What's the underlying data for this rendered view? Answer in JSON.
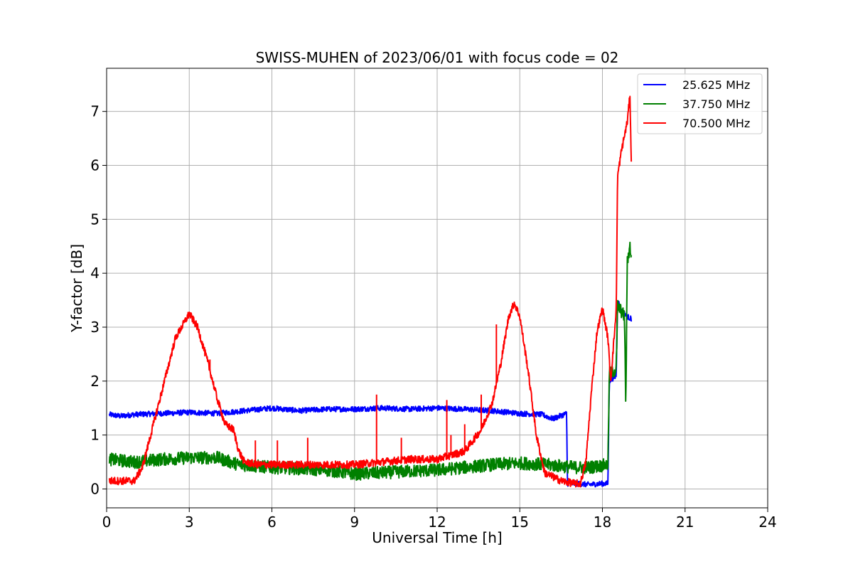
{
  "chart_data": {
    "type": "line",
    "title": "SWISS-MUHEN of 2023/06/01 with focus code = 02",
    "xlabel": "Universal Time [h]",
    "ylabel": "Y-factor [dB]",
    "xlim": [
      0,
      24
    ],
    "ylim": [
      -0.35,
      7.8
    ],
    "xticks": [
      0,
      3,
      6,
      9,
      12,
      15,
      18,
      21,
      24
    ],
    "yticks": [
      0,
      1,
      2,
      3,
      4,
      5,
      6,
      7
    ],
    "grid": true,
    "legend_position": "top-right",
    "series": [
      {
        "name": "25.625 MHz",
        "color": "#0000ff",
        "x": [
          0.1,
          0.5,
          1.0,
          2.0,
          3.0,
          4.0,
          5.0,
          6.0,
          7.0,
          8.0,
          9.0,
          10.0,
          11.0,
          12.0,
          13.0,
          14.0,
          15.0,
          15.8,
          16.2,
          16.7,
          16.73,
          17.0,
          17.5,
          18.0,
          18.2,
          18.25,
          18.5,
          18.55,
          18.7,
          18.9,
          19.05
        ],
        "y": [
          1.38,
          1.35,
          1.38,
          1.4,
          1.42,
          1.4,
          1.45,
          1.5,
          1.45,
          1.48,
          1.48,
          1.5,
          1.48,
          1.5,
          1.48,
          1.45,
          1.4,
          1.38,
          1.3,
          1.4,
          0.1,
          0.1,
          0.08,
          0.1,
          0.1,
          2.0,
          2.1,
          3.5,
          3.3,
          3.2,
          3.15
        ],
        "noise": 0.05
      },
      {
        "name": "37.750 MHz",
        "color": "#008000",
        "x": [
          0.1,
          1.0,
          2.0,
          3.0,
          4.0,
          4.8,
          6.0,
          7.0,
          8.0,
          9.0,
          10.0,
          11.0,
          12.0,
          13.0,
          14.0,
          15.0,
          16.0,
          17.0,
          17.5,
          18.2,
          18.25,
          18.5,
          18.55,
          18.8,
          18.85,
          18.9,
          19.0,
          19.05
        ],
        "y": [
          0.55,
          0.5,
          0.55,
          0.58,
          0.58,
          0.45,
          0.4,
          0.38,
          0.35,
          0.28,
          0.3,
          0.33,
          0.35,
          0.4,
          0.45,
          0.48,
          0.45,
          0.4,
          0.4,
          0.45,
          2.15,
          2.2,
          3.4,
          3.2,
          1.5,
          4.2,
          4.5,
          4.3
        ],
        "noise": 0.12
      },
      {
        "name": "70.500 MHz",
        "color": "#ff0000",
        "x": [
          0.1,
          0.5,
          1.0,
          1.3,
          1.6,
          2.0,
          2.5,
          3.0,
          3.3,
          3.7,
          4.0,
          4.3,
          4.6,
          4.8,
          5.0,
          5.5,
          6.0,
          7.0,
          8.0,
          9.0,
          10.0,
          11.0,
          12.0,
          13.0,
          13.3,
          13.6,
          14.0,
          14.3,
          14.6,
          14.8,
          15.0,
          15.3,
          15.6,
          15.9,
          16.5,
          17.0,
          17.2,
          17.4,
          17.6,
          17.8,
          18.0,
          18.2,
          18.3,
          18.5,
          18.55,
          18.7,
          18.9,
          19.0,
          19.05
        ],
        "y": [
          0.15,
          0.15,
          0.15,
          0.4,
          1.0,
          1.8,
          2.8,
          3.25,
          3.0,
          2.3,
          1.7,
          1.2,
          1.1,
          0.7,
          0.5,
          0.45,
          0.45,
          0.45,
          0.45,
          0.45,
          0.5,
          0.55,
          0.55,
          0.7,
          0.9,
          1.1,
          1.6,
          2.3,
          3.2,
          3.45,
          3.2,
          2.2,
          1.0,
          0.3,
          0.15,
          0.1,
          0.1,
          0.5,
          1.8,
          2.9,
          3.35,
          2.8,
          2.0,
          3.3,
          5.8,
          6.3,
          6.8,
          7.3,
          6.0
        ],
        "noise": 0.07,
        "spikes": [
          {
            "x": 1.75,
            "y": 1.3
          },
          {
            "x": 2.0,
            "y": 1.8
          },
          {
            "x": 2.2,
            "y": 2.2
          },
          {
            "x": 3.75,
            "y": 2.4
          },
          {
            "x": 5.4,
            "y": 0.9
          },
          {
            "x": 6.2,
            "y": 0.9
          },
          {
            "x": 7.3,
            "y": 0.95
          },
          {
            "x": 9.8,
            "y": 1.75
          },
          {
            "x": 10.7,
            "y": 0.95
          },
          {
            "x": 12.35,
            "y": 1.65
          },
          {
            "x": 12.5,
            "y": 1.0
          },
          {
            "x": 13.0,
            "y": 1.2
          },
          {
            "x": 13.6,
            "y": 1.75
          },
          {
            "x": 14.15,
            "y": 3.05
          }
        ]
      }
    ]
  }
}
